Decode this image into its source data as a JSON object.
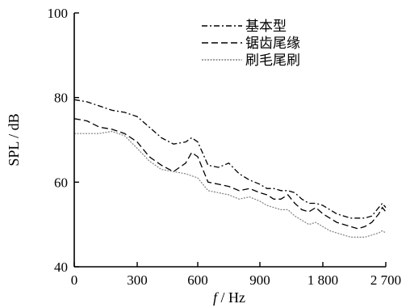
{
  "chart_data": {
    "type": "line",
    "xlabel_var": "f",
    "xlabel_unit": "/ Hz",
    "ylabel": "SPL / dB",
    "ylim": [
      40,
      100
    ],
    "yticks": [
      40,
      60,
      80,
      100
    ],
    "xlim": [
      0,
      2700
    ],
    "xticks": [
      0,
      300,
      600,
      900,
      1800,
      2700
    ],
    "xtick_labels": [
      "0",
      "300",
      "600",
      "900",
      "1 800",
      "2 700"
    ],
    "x_scale": "nonlinear: linear 0–900, then compressed 900–2700",
    "grid": false,
    "legend_position": "top-center",
    "series": [
      {
        "name": "基本型",
        "style": "dash-dot",
        "color": "#000000",
        "points": [
          [
            0,
            79.5
          ],
          [
            60,
            79
          ],
          [
            120,
            78
          ],
          [
            180,
            77
          ],
          [
            240,
            76.5
          ],
          [
            300,
            75.5
          ],
          [
            360,
            73
          ],
          [
            420,
            70.5
          ],
          [
            480,
            69
          ],
          [
            540,
            69.5
          ],
          [
            570,
            70.5
          ],
          [
            600,
            69.5
          ],
          [
            650,
            64
          ],
          [
            700,
            63.5
          ],
          [
            750,
            64.5
          ],
          [
            800,
            62
          ],
          [
            850,
            60.5
          ],
          [
            900,
            59.5
          ],
          [
            1000,
            58.5
          ],
          [
            1100,
            58.5
          ],
          [
            1200,
            58
          ],
          [
            1300,
            58
          ],
          [
            1400,
            57.5
          ],
          [
            1500,
            56
          ],
          [
            1600,
            55
          ],
          [
            1700,
            55
          ],
          [
            1800,
            54.5
          ],
          [
            1900,
            53.5
          ],
          [
            2000,
            52.5
          ],
          [
            2100,
            52
          ],
          [
            2200,
            51.5
          ],
          [
            2300,
            51.5
          ],
          [
            2400,
            51.5
          ],
          [
            2500,
            52
          ],
          [
            2600,
            54
          ],
          [
            2650,
            55
          ],
          [
            2700,
            54
          ]
        ]
      },
      {
        "name": "锯齿尾缘",
        "style": "dashed",
        "color": "#000000",
        "points": [
          [
            0,
            75
          ],
          [
            60,
            74.5
          ],
          [
            120,
            73
          ],
          [
            180,
            72.5
          ],
          [
            240,
            71.5
          ],
          [
            300,
            69.5
          ],
          [
            360,
            66
          ],
          [
            420,
            64
          ],
          [
            480,
            62.5
          ],
          [
            540,
            64.5
          ],
          [
            570,
            67
          ],
          [
            600,
            66
          ],
          [
            650,
            60
          ],
          [
            700,
            59.5
          ],
          [
            750,
            59
          ],
          [
            800,
            58
          ],
          [
            850,
            58.5
          ],
          [
            900,
            57.5
          ],
          [
            1000,
            57
          ],
          [
            1100,
            56
          ],
          [
            1200,
            56
          ],
          [
            1300,
            57
          ],
          [
            1400,
            55
          ],
          [
            1500,
            53.5
          ],
          [
            1600,
            53
          ],
          [
            1700,
            54
          ],
          [
            1800,
            52.5
          ],
          [
            1900,
            51.5
          ],
          [
            2000,
            50.5
          ],
          [
            2100,
            50
          ],
          [
            2200,
            49.5
          ],
          [
            2300,
            49
          ],
          [
            2400,
            49.5
          ],
          [
            2500,
            50.5
          ],
          [
            2600,
            52.5
          ],
          [
            2650,
            54
          ],
          [
            2700,
            53
          ]
        ]
      },
      {
        "name": "刷毛尾刷",
        "style": "dotted",
        "color": "#808080",
        "points": [
          [
            0,
            71.5
          ],
          [
            60,
            71.5
          ],
          [
            120,
            71.5
          ],
          [
            180,
            72
          ],
          [
            240,
            71
          ],
          [
            300,
            68
          ],
          [
            360,
            65
          ],
          [
            420,
            63
          ],
          [
            480,
            62.5
          ],
          [
            540,
            62
          ],
          [
            570,
            61.5
          ],
          [
            600,
            61
          ],
          [
            650,
            58
          ],
          [
            700,
            57.5
          ],
          [
            750,
            57
          ],
          [
            800,
            56
          ],
          [
            850,
            56.5
          ],
          [
            900,
            55.5
          ],
          [
            1000,
            54.5
          ],
          [
            1100,
            54
          ],
          [
            1200,
            53.5
          ],
          [
            1300,
            53.5
          ],
          [
            1400,
            52
          ],
          [
            1500,
            51
          ],
          [
            1600,
            50
          ],
          [
            1700,
            50.5
          ],
          [
            1800,
            49.5
          ],
          [
            1900,
            48.5
          ],
          [
            2000,
            48
          ],
          [
            2100,
            47.5
          ],
          [
            2200,
            47
          ],
          [
            2300,
            47
          ],
          [
            2400,
            47
          ],
          [
            2500,
            47.5
          ],
          [
            2600,
            48
          ],
          [
            2650,
            48.5
          ],
          [
            2700,
            48
          ]
        ]
      }
    ]
  }
}
